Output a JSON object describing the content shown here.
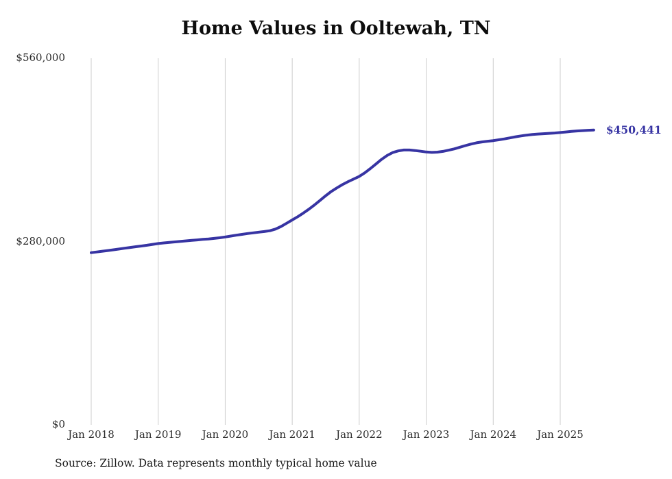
{
  "title": "Home Values in Ooltewah, TN",
  "source_note": "Source: Zillow. Data represents monthly typical home value",
  "latest_value_label": "$450,441",
  "colors": {
    "line": "#3734a3",
    "latest_label": "#3734a3",
    "grid": "#cccccc",
    "tick_text": "#2b2b2b",
    "title_text": "#0d0d0d",
    "background": "#ffffff"
  },
  "chart_data": {
    "type": "line",
    "title": "Home Values in Ooltewah, TN",
    "xlabel": "",
    "ylabel": "",
    "grid": "vertical-only",
    "legend": false,
    "ylim": [
      0,
      560000
    ],
    "y_ticks": [
      {
        "value": 0,
        "label": "$0"
      },
      {
        "value": 280000,
        "label": "$280,000"
      },
      {
        "value": 560000,
        "label": "$560,000"
      }
    ],
    "x_gridlines": [
      "Jan 2018",
      "Jan 2019",
      "Jan 2020",
      "Jan 2021",
      "Jan 2022",
      "Jan 2023",
      "Jan 2024",
      "Jan 2025"
    ],
    "series": [
      {
        "name": "Typical home value",
        "start_month": "2018-01",
        "end_month": "2025-07",
        "latest_value": 450441,
        "monthly_values": [
          263000,
          264100,
          265200,
          266300,
          267400,
          268600,
          269800,
          271000,
          272100,
          273200,
          274400,
          275700,
          277000,
          277900,
          278700,
          279500,
          280300,
          281000,
          281800,
          282500,
          283300,
          284000,
          284800,
          285800,
          287000,
          288400,
          289700,
          291000,
          292200,
          293300,
          294300,
          295300,
          296500,
          299000,
          303000,
          308000,
          313000,
          318000,
          323500,
          329500,
          336000,
          343000,
          350000,
          356500,
          362000,
          367000,
          371500,
          375500,
          379500,
          385000,
          391500,
          398500,
          405500,
          411500,
          416000,
          418500,
          419800,
          419800,
          419000,
          418000,
          416800,
          416200,
          416600,
          417800,
          419500,
          421500,
          424000,
          426500,
          428800,
          430800,
          432200,
          433200,
          434200,
          435400,
          436800,
          438400,
          440000,
          441400,
          442600,
          443500,
          444200,
          444800,
          445300,
          445800,
          446500,
          447400,
          448200,
          448900,
          449500,
          450000,
          450441
        ]
      }
    ]
  }
}
